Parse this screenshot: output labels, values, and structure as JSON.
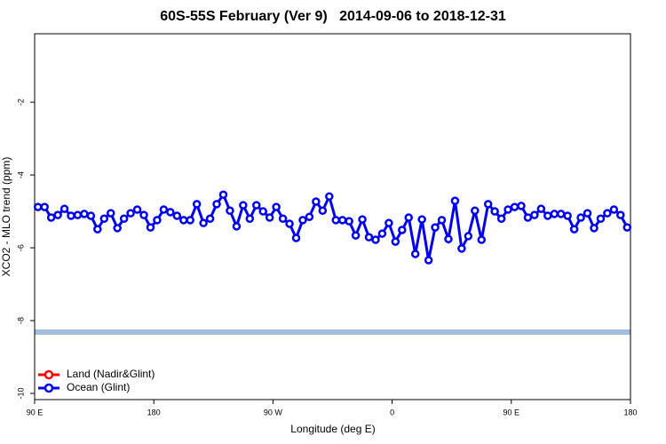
{
  "chart_data": {
    "type": "line",
    "title": "60S-55S February (Ver 9)   2014-09-06 to 2018-12-31",
    "x_label": "Longitude (deg E)",
    "y_label": "XCO2 - MLO trend (ppm)",
    "xlim": [
      90,
      540
    ],
    "ylim": [
      -10.17,
      -0.12
    ],
    "xticks": [
      {
        "value": 90,
        "label": "90 E"
      },
      180,
      {
        "value": 270,
        "label": "90 W"
      },
      {
        "value": 360,
        "label": "0"
      },
      {
        "value": 450,
        "label": "90 E"
      },
      {
        "value": 540,
        "label": "180"
      }
    ],
    "yticks": [
      -2,
      -4,
      -6,
      -8,
      -10
    ],
    "legend": "lower left",
    "x": [
      92.5,
      97.5,
      102.5,
      107.5,
      112.5,
      117.5,
      122.5,
      127.5,
      132.5,
      137.5,
      142.5,
      147.5,
      152.5,
      157.5,
      162.5,
      167.5,
      172.5,
      177.5,
      182.5,
      187.5,
      192.5,
      197.5,
      202.5,
      207.5,
      212.5,
      217.5,
      222.5,
      227.5,
      232.5,
      237.5,
      242.5,
      247.5,
      252.5,
      257.5,
      262.5,
      267.5,
      272.5,
      277.5,
      282.5,
      287.5,
      292.5,
      297.5,
      302.5,
      307.5,
      312.5,
      317.5,
      322.5,
      327.5,
      332.5,
      337.5,
      342.5,
      347.5,
      352.5,
      357.5,
      362.5,
      367.5,
      372.5,
      377.5,
      382.5,
      387.5,
      392.5,
      397.5,
      402.5,
      407.5,
      412.5,
      417.5,
      422.5,
      427.5,
      432.5,
      437.5,
      442.5,
      447.5,
      452.5,
      457.5,
      462.5,
      467.5,
      472.5,
      477.5,
      482.5,
      487.5,
      492.5,
      497.5,
      502.5,
      507.5,
      512.5,
      517.5,
      522.5,
      527.5,
      532.5,
      537.5
    ],
    "series": [
      {
        "name": "Land (Nadir&Glint)",
        "color": "#ff0000",
        "values": [
          null,
          null,
          null,
          null,
          null,
          null,
          null,
          null,
          null,
          null,
          null,
          null,
          null,
          null,
          null,
          null,
          null,
          null,
          null,
          null,
          null,
          null,
          null,
          null,
          null,
          null,
          null,
          null,
          null,
          null,
          null,
          null,
          null,
          null,
          null,
          null,
          null,
          null,
          null,
          null,
          null,
          null,
          null,
          null,
          null,
          null,
          null,
          null,
          null,
          null,
          null,
          null,
          null,
          null,
          null,
          null,
          null,
          null,
          null,
          null,
          null,
          null,
          null,
          null,
          null,
          null,
          null,
          null,
          null,
          null,
          null,
          null,
          null,
          null,
          null,
          null,
          null,
          null,
          null,
          null,
          null,
          null,
          null,
          null,
          null,
          null,
          null,
          null,
          null,
          null
        ]
      },
      {
        "name": "Ocean (Glint)",
        "color": "#0000ee",
        "values": [
          -4.88,
          -4.88,
          -5.17,
          -5.1,
          -4.93,
          -5.12,
          -5.1,
          -5.07,
          -5.12,
          -5.49,
          -5.2,
          -5.05,
          -5.46,
          -5.2,
          -5.05,
          -4.95,
          -5.1,
          -5.44,
          -5.24,
          -4.95,
          -5.02,
          -5.12,
          -5.24,
          -5.24,
          -4.8,
          -5.32,
          -5.2,
          -4.8,
          -4.54,
          -4.98,
          -5.41,
          -4.83,
          -5.2,
          -4.83,
          -5.0,
          -5.17,
          -4.88,
          -5.2,
          -5.34,
          -5.73,
          -5.24,
          -5.15,
          -4.73,
          -4.98,
          -4.59,
          -5.24,
          -5.24,
          -5.27,
          -5.66,
          -5.22,
          -5.71,
          -5.78,
          -5.61,
          -5.32,
          -5.83,
          -5.51,
          -5.17,
          -6.17,
          -5.22,
          -6.34,
          -5.44,
          -5.24,
          -5.76,
          -4.71,
          -6.02,
          -5.68,
          -4.98,
          -5.78,
          -4.8,
          -5.0,
          -5.2,
          -4.95,
          -4.88,
          -4.85,
          -5.17,
          -5.1,
          -4.93,
          -5.12,
          -5.07,
          -5.07,
          -5.12,
          -5.49,
          -5.17,
          -5.05,
          -5.46,
          -5.2,
          -5.05,
          -4.95,
          -5.1,
          -5.44
        ]
      }
    ]
  }
}
